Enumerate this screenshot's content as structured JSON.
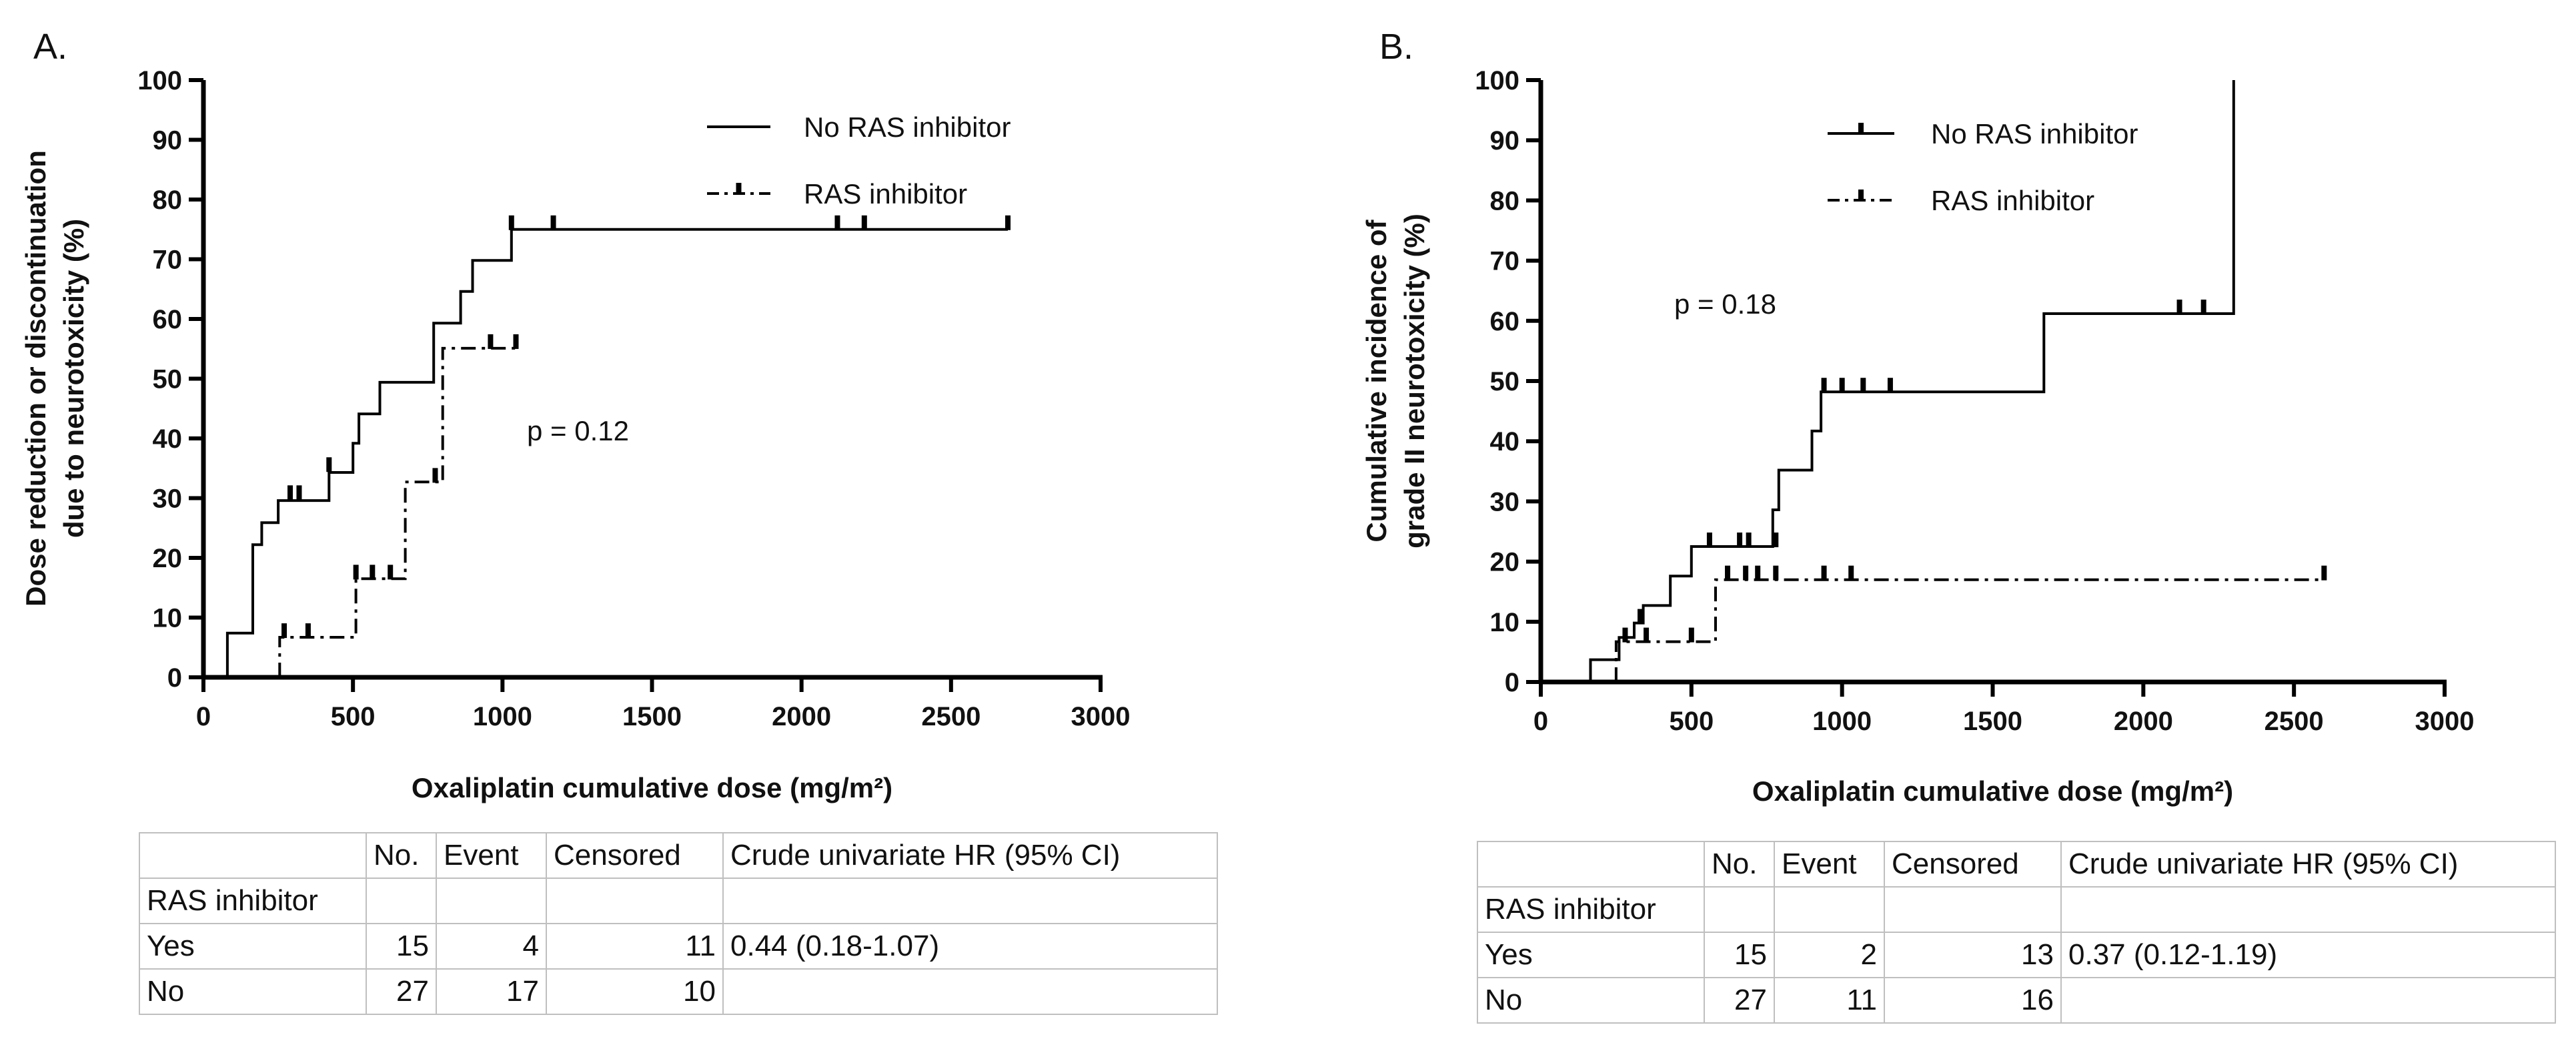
{
  "chart_data": [
    {
      "type": "line",
      "panel": "A.",
      "ylabel_line1": "Dose reduction or discontinuation",
      "ylabel_line2": "due to neurotoxicity (%)",
      "xlabel": "Oxaliplatin cumulative dose (mg/m²)",
      "xlim": [
        0,
        3000
      ],
      "ylim": [
        0,
        100
      ],
      "xticks": [
        0,
        500,
        1000,
        1500,
        2000,
        2500,
        3000
      ],
      "yticks": [
        0,
        10,
        20,
        30,
        40,
        50,
        60,
        70,
        80,
        90,
        100
      ],
      "legend": [
        "No RAS inhibitor",
        "RAS inhibitor"
      ],
      "annotation": "p = 0.12",
      "series": [
        {
          "name": "No RAS inhibitor",
          "style": "solid",
          "steps": [
            [
              80,
              0
            ],
            [
              80,
              7.4
            ],
            [
              165,
              7.4
            ],
            [
              165,
              22.2
            ],
            [
              195,
              22.2
            ],
            [
              195,
              25.9
            ],
            [
              250,
              25.9
            ],
            [
              250,
              29.6
            ],
            [
              420,
              29.6
            ],
            [
              420,
              34.3
            ],
            [
              500,
              34.3
            ],
            [
              500,
              39.2
            ],
            [
              520,
              39.2
            ],
            [
              520,
              44.1
            ],
            [
              590,
              44.1
            ],
            [
              590,
              49.4
            ],
            [
              770,
              49.4
            ],
            [
              770,
              59.3
            ],
            [
              860,
              59.3
            ],
            [
              860,
              64.6
            ],
            [
              900,
              64.6
            ],
            [
              900,
              69.8
            ],
            [
              1030,
              69.8
            ],
            [
              1030,
              75
            ],
            [
              2690,
              75
            ]
          ],
          "censors": [
            [
              290,
              30.8
            ],
            [
              320,
              30.8
            ],
            [
              420,
              35.5
            ],
            [
              1030,
              76
            ],
            [
              1170,
              76
            ],
            [
              2120,
              76
            ],
            [
              2210,
              76
            ],
            [
              2690,
              76
            ]
          ]
        },
        {
          "name": "RAS inhibitor",
          "style": "dash-dot",
          "steps": [
            [
              255,
              0
            ],
            [
              255,
              6.7
            ],
            [
              510,
              6.7
            ],
            [
              510,
              16.5
            ],
            [
              675,
              16.5
            ],
            [
              675,
              32.7
            ],
            [
              800,
              32.7
            ],
            [
              800,
              55.1
            ],
            [
              1050,
              55.1
            ]
          ],
          "censors": [
            [
              270,
              7.7
            ],
            [
              350,
              7.7
            ],
            [
              510,
              17.5
            ],
            [
              565,
              17.5
            ],
            [
              625,
              17.5
            ],
            [
              775,
              33.7
            ],
            [
              960,
              56.1
            ],
            [
              1045,
              56.1
            ]
          ]
        }
      ]
    },
    {
      "type": "line",
      "panel": "B.",
      "ylabel_line1": "Cumulative incidence of",
      "ylabel_line2": "grade II neurotoxicity (%)",
      "xlabel": "Oxaliplatin cumulative dose (mg/m²)",
      "xlim": [
        0,
        3000
      ],
      "ylim": [
        0,
        100
      ],
      "xticks": [
        0,
        500,
        1000,
        1500,
        2000,
        2500,
        3000
      ],
      "yticks": [
        0,
        10,
        20,
        30,
        40,
        50,
        60,
        70,
        80,
        90,
        100
      ],
      "legend": [
        "No RAS inhibitor",
        "RAS inhibitor"
      ],
      "annotation": "p = 0.18",
      "series": [
        {
          "name": "No RAS inhibitor",
          "style": "solid",
          "steps": [
            [
              165,
              0
            ],
            [
              165,
              3.7
            ],
            [
              260,
              3.7
            ],
            [
              260,
              7.4
            ],
            [
              310,
              7.4
            ],
            [
              310,
              9.8
            ],
            [
              340,
              9.8
            ],
            [
              340,
              12.7
            ],
            [
              430,
              12.7
            ],
            [
              430,
              17.6
            ],
            [
              500,
              17.6
            ],
            [
              500,
              22.5
            ],
            [
              770,
              22.5
            ],
            [
              770,
              28.6
            ],
            [
              790,
              28.6
            ],
            [
              790,
              35.2
            ],
            [
              900,
              35.2
            ],
            [
              900,
              41.7
            ],
            [
              930,
              41.7
            ],
            [
              930,
              48.2
            ],
            [
              1670,
              48.2
            ],
            [
              1670,
              61.2
            ],
            [
              2300,
              61.2
            ],
            [
              2300,
              100
            ]
          ],
          "censors": [
            [
              330,
              10.8
            ],
            [
              560,
              23.5
            ],
            [
              660,
              23.5
            ],
            [
              690,
              23.5
            ],
            [
              780,
              23.5
            ],
            [
              940,
              49.2
            ],
            [
              1000,
              49.2
            ],
            [
              1070,
              49.2
            ],
            [
              1160,
              49.2
            ],
            [
              2120,
              62.2
            ],
            [
              2200,
              62.2
            ]
          ]
        },
        {
          "name": "RAS inhibitor",
          "style": "dash-dot",
          "steps": [
            [
              250,
              0
            ],
            [
              250,
              6.7
            ],
            [
              580,
              6.7
            ],
            [
              580,
              17
            ],
            [
              2600,
              17
            ]
          ],
          "censors": [
            [
              280,
              7.7
            ],
            [
              350,
              7.7
            ],
            [
              500,
              7.7
            ],
            [
              620,
              18
            ],
            [
              680,
              18
            ],
            [
              720,
              18
            ],
            [
              780,
              18
            ],
            [
              940,
              18
            ],
            [
              1030,
              18
            ],
            [
              2600,
              18
            ]
          ]
        }
      ]
    }
  ],
  "tables": {
    "A": {
      "headers": [
        "",
        "No.",
        "Event",
        "Censored",
        "Crude univariate HR (95% CI)"
      ],
      "rows": [
        [
          "RAS inhibitor",
          "",
          "",
          "",
          ""
        ],
        [
          "Yes",
          "15",
          "4",
          "11",
          "0.44 (0.18-1.07)"
        ],
        [
          "No",
          "27",
          "17",
          "10",
          ""
        ]
      ]
    },
    "B": {
      "headers": [
        "",
        "No.",
        "Event",
        "Censored",
        "Crude univariate HR (95% CI)"
      ],
      "rows": [
        [
          "RAS inhibitor",
          "",
          "",
          "",
          ""
        ],
        [
          "Yes",
          "15",
          "2",
          "13",
          "0.37 (0.12-1.19)"
        ],
        [
          "No",
          "27",
          "11",
          "16",
          ""
        ]
      ]
    }
  }
}
